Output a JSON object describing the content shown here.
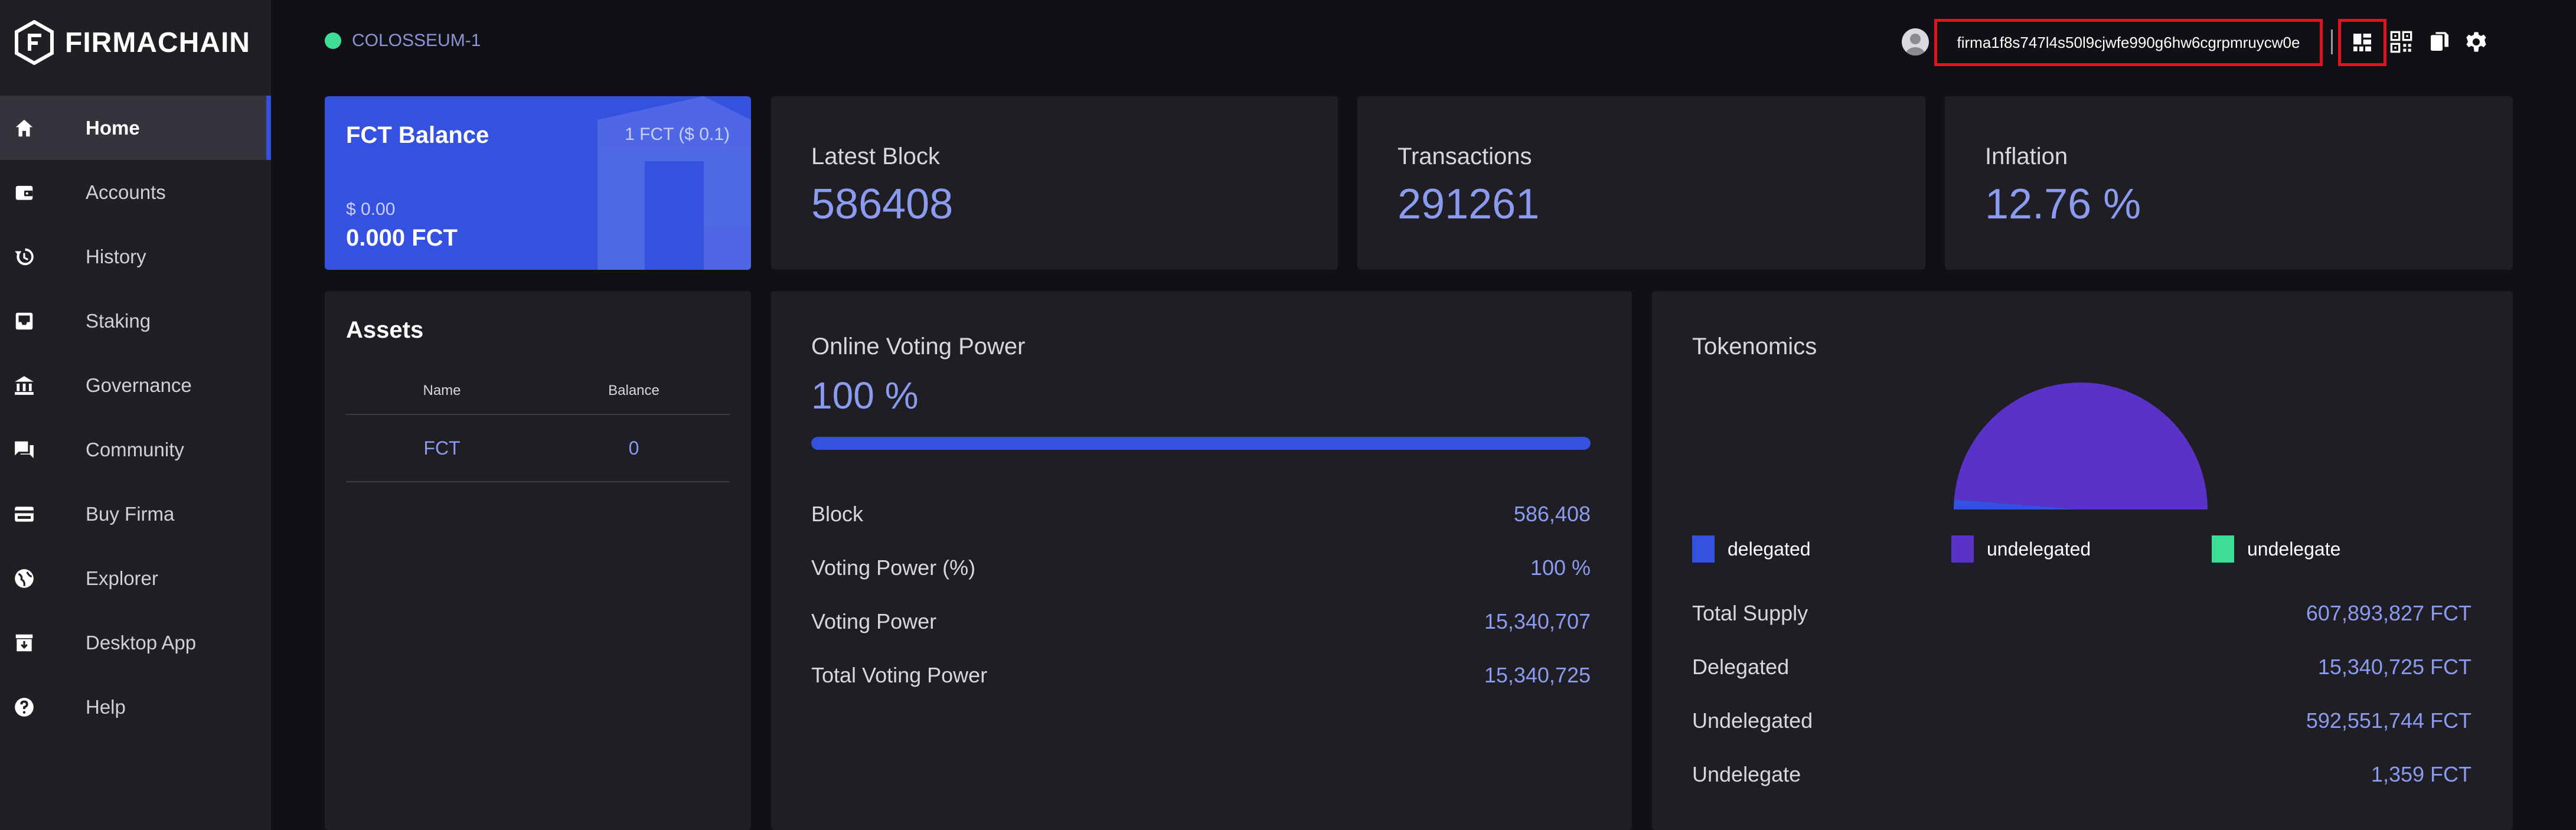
{
  "app": {
    "logo_text": "FIRMACHAIN",
    "network": "COLOSSEUM-1"
  },
  "sidebar": {
    "items": [
      {
        "label": "Home",
        "icon": "home-icon",
        "active": true
      },
      {
        "label": "Accounts",
        "icon": "wallet-icon"
      },
      {
        "label": "History",
        "icon": "history-icon"
      },
      {
        "label": "Staking",
        "icon": "inbox-icon"
      },
      {
        "label": "Governance",
        "icon": "bank-icon"
      },
      {
        "label": "Community",
        "icon": "chat-icon"
      },
      {
        "label": "Buy Firma",
        "icon": "card-icon"
      },
      {
        "label": "Explorer",
        "icon": "globe-icon"
      },
      {
        "label": "Desktop App",
        "icon": "archive-icon"
      },
      {
        "label": "Help",
        "icon": "help-icon"
      }
    ]
  },
  "topbar": {
    "address": "firma1f8s747l4s50l9cjwfe990g6hw6cgrpmruycw0e",
    "tools": [
      "menu-grid-icon",
      "qr-code-icon",
      "copy-icon",
      "gear-icon"
    ]
  },
  "balance": {
    "title": "FCT Balance",
    "rate": "1 FCT ($ 0.1)",
    "usd": "$ 0.00",
    "fct": "0.000 FCT"
  },
  "stats": {
    "latest_block": {
      "title": "Latest Block",
      "value": "586408"
    },
    "transactions": {
      "title": "Transactions",
      "value": "291261"
    },
    "inflation": {
      "title": "Inflation",
      "value": "12.76 %"
    }
  },
  "assets": {
    "title": "Assets",
    "columns": [
      "Name",
      "Balance"
    ],
    "rows": [
      {
        "name": "FCT",
        "balance": "0"
      }
    ]
  },
  "voting": {
    "title": "Online Voting Power",
    "value": "100 %",
    "progress_percent": 100,
    "rows": [
      {
        "label": "Block",
        "value": "586,408"
      },
      {
        "label": "Voting Power (%)",
        "value": "100 %"
      },
      {
        "label": "Voting Power",
        "value": "15,340,707"
      },
      {
        "label": "Total Voting Power",
        "value": "15,340,725"
      }
    ]
  },
  "tokenomics": {
    "title": "Tokenomics",
    "legend": [
      {
        "label": "delegated",
        "color": "#3551e0"
      },
      {
        "label": "undelegated",
        "color": "#5a32c8"
      },
      {
        "label": "undelegate",
        "color": "#3ddc97"
      }
    ],
    "rows": [
      {
        "label": "Total Supply",
        "value": "607,893,827 FCT"
      },
      {
        "label": "Delegated",
        "value": "15,340,725 FCT"
      },
      {
        "label": "Undelegated",
        "value": "592,551,744 FCT"
      },
      {
        "label": "Undelegate",
        "value": "1,359 FCT"
      }
    ]
  },
  "chart_data": {
    "type": "pie",
    "categories": [
      "delegated",
      "undelegated",
      "undelegate"
    ],
    "values": [
      15340725,
      592551744,
      1359
    ],
    "colors": [
      "#3551e0",
      "#5a32c8",
      "#3ddc97"
    ],
    "title": ""
  }
}
